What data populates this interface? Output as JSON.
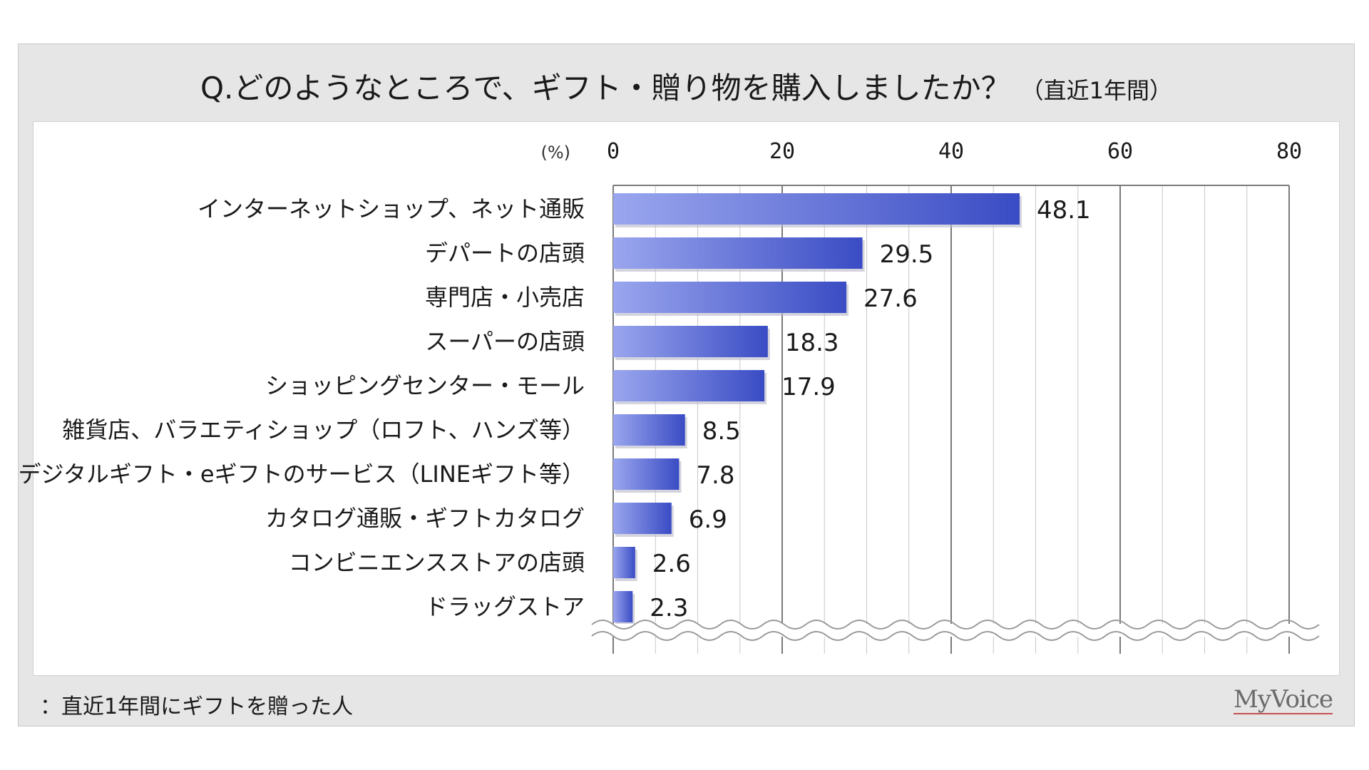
{
  "title": "Q.どのようなところで、ギフト・贈り物を購入しましたか？",
  "subtitle": "（直近1年間）",
  "footnote": "：直近1年間にギフトを贈った人",
  "brand": "MyVoice",
  "colors": {
    "bar_light": "#9aa6ee",
    "bar_dark": "#3a4cc4",
    "gridline": "#c8c8c8",
    "axis": "#7a7a7a"
  },
  "chart_data": {
    "type": "bar",
    "orientation": "horizontal",
    "title": "Q.どのようなところで、ギフト・贈り物を購入しましたか？（直近1年間）",
    "unit_label": "(%)",
    "xlim": [
      0,
      80
    ],
    "ticks": [
      0,
      20,
      40,
      60,
      80
    ],
    "grid": true,
    "categories": [
      "インターネットショップ、ネット通販",
      "デパートの店頭",
      "専門店・小売店",
      "スーパーの店頭",
      "ショッピングセンター・モール",
      "雑貨店、バラエティショップ（ロフト、ハンズ等）",
      "デジタルギフト・eギフトのサービス（LINEギフト等）",
      "カタログ通販・ギフトカタログ",
      "コンビニエンスストアの店頭",
      "ドラッグストア"
    ],
    "values": [
      48.1,
      29.5,
      27.6,
      18.3,
      17.9,
      8.5,
      7.8,
      6.9,
      2.6,
      2.3
    ],
    "value_labels": [
      "48.1",
      "29.5",
      "27.6",
      "18.3",
      "17.9",
      "8.5",
      "7.8",
      "6.9",
      "2.6",
      "2.3"
    ]
  }
}
